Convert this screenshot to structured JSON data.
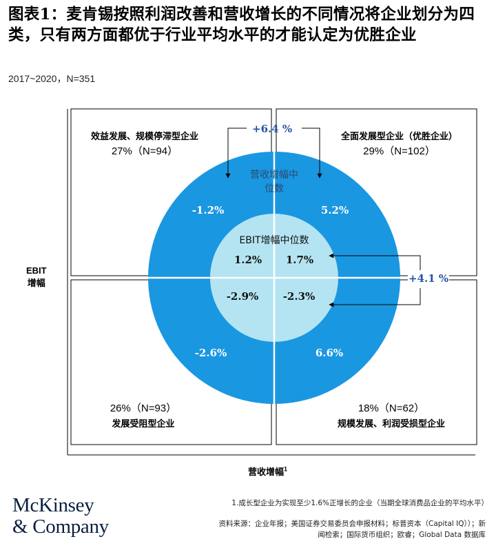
{
  "title": "图表1：麦肯锡按照利润改善和营收增长的不同情况将企业划分为四类，只有两方面都优于行业平均水平的才能认定为优胜企业",
  "subtitle": "2017~2020，N=351",
  "colors": {
    "outer_circle": "#1a97e1",
    "inner_circle": "#b4e4f2",
    "accent_blue": "#2454a4"
  },
  "quadrants": {
    "top_left": {
      "name": "效益发展、规模停滞型企业",
      "stat": "27%（N=94）"
    },
    "top_right": {
      "name": "全面发展型企业（优胜企业）",
      "stat": "29%（N=102）"
    },
    "bottom_left": {
      "stat": "26%（N=93）",
      "name": "发展受阻型企业"
    },
    "bottom_right": {
      "stat": "18%（N=62）",
      "name": "规模发展、利润受损型企业"
    }
  },
  "outer_label": "营收增幅中位数",
  "inner_label": "EBIT增幅中位数",
  "outer_values": {
    "top_left": "-1.2%",
    "top_right": "5.2%",
    "bottom_left": "-2.6%",
    "bottom_right": "6.6%"
  },
  "inner_values": {
    "top_left": "1.2%",
    "top_right": "1.7%",
    "bottom_left": "-2.9%",
    "bottom_right": "-2.3%"
  },
  "diff_revenue": "+6.4 %",
  "diff_ebit": "+4.1 %",
  "y_axis_label": [
    "EBIT",
    "增幅"
  ],
  "x_axis_label": "营收增幅",
  "x_axis_sup": "1",
  "logo": [
    "McKinsey",
    "& Company"
  ],
  "footnote": "1.成长型企业为实现至少1.6%正增长的企业（当期全球消费品企业的平均水平）",
  "source": "资料来源：企业年报；美国证券交易委员会申报材料；标普资本（Capital IQ））；新闻检索；国际货币组织；欧睿；Global Data 数据库"
}
